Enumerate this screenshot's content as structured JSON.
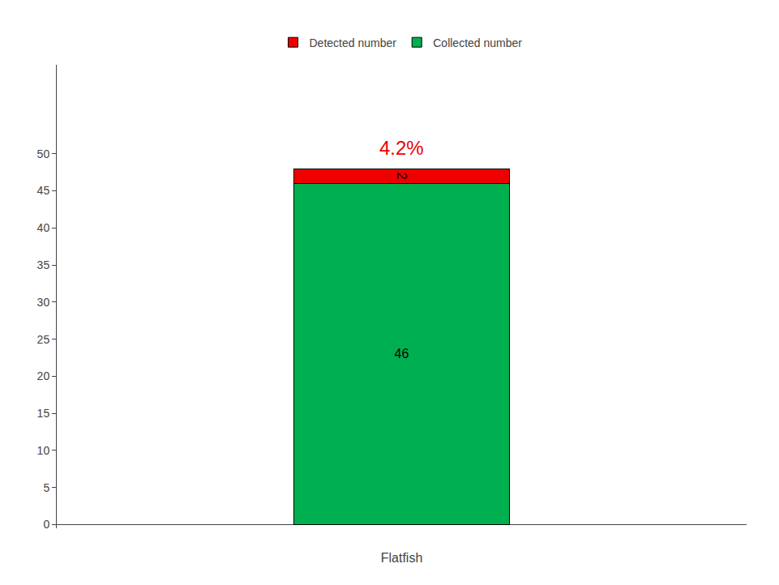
{
  "chart_data": {
    "type": "bar",
    "stacked": true,
    "xlabel": "Flatfish",
    "categories": [
      null
    ],
    "series": [
      {
        "name": "Collected number",
        "color": "#00B050",
        "values": [
          46
        ]
      },
      {
        "name": "Detected number",
        "color": "#EE0000",
        "values": [
          2
        ]
      }
    ],
    "annotations": [
      {
        "text": "4.2%",
        "color": "#EE0000"
      }
    ],
    "ylim": [
      -0.5,
      62
    ],
    "yticks": [
      0,
      5,
      10,
      15,
      20,
      25,
      30,
      35,
      40,
      45,
      50
    ],
    "grid": false,
    "legend": "top",
    "data_labels": true,
    "tick_labels": "y"
  }
}
